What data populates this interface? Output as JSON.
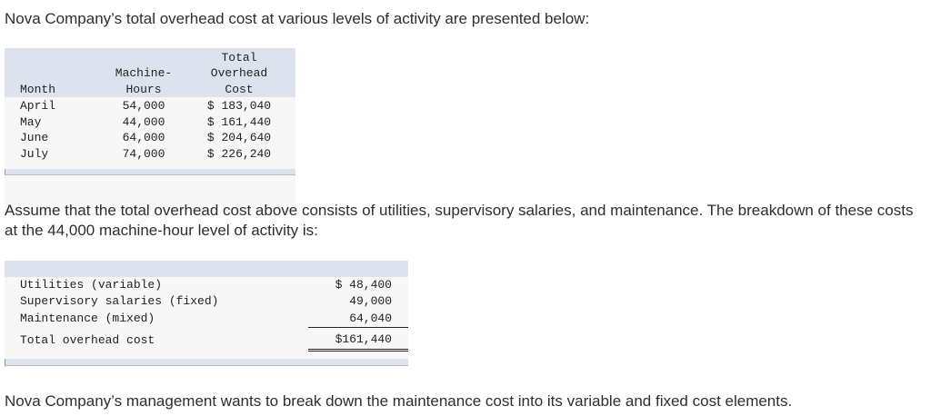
{
  "intro": "Nova Company’s total overhead cost at various levels of activity are presented below:",
  "table1": {
    "headers": {
      "month": "Month",
      "machine_hours": [
        "Machine-",
        "Hours"
      ],
      "total_overhead": [
        "Total",
        "Overhead",
        "Cost"
      ]
    },
    "rows": [
      {
        "month": "April",
        "hours": "54,000",
        "cost": "$ 183,040"
      },
      {
        "month": "May",
        "hours": "44,000",
        "cost": "$ 161,440"
      },
      {
        "month": "June",
        "hours": "64,000",
        "cost": "$ 204,640"
      },
      {
        "month": "July",
        "hours": "74,000",
        "cost": "$ 226,240"
      }
    ]
  },
  "paragraph2": "Assume that the total overhead cost above consists of utilities, supervisory salaries, and maintenance. The breakdown of these costs at the 44,000 machine-hour level of activity is:",
  "table2": {
    "rows": [
      {
        "label": "Utilities (variable)",
        "amount": "$ 48,400"
      },
      {
        "label": "Supervisory salaries (fixed)",
        "amount": "49,000"
      },
      {
        "label": "Maintenance (mixed)",
        "amount": "64,040"
      }
    ],
    "total": {
      "label": "Total overhead cost",
      "amount": "$161,440"
    }
  },
  "paragraph3": "Nova Company’s management wants to break down the maintenance cost into its variable and fixed cost elements."
}
